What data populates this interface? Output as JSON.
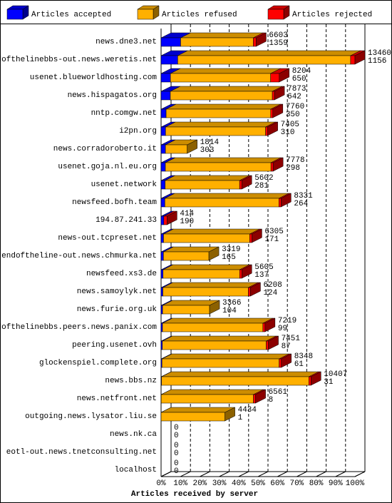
{
  "chart_data": {
    "type": "bar3d",
    "orientation": "horizontal",
    "stacked": true,
    "x_label": "Articles received by server",
    "legend": "top",
    "categories": [
      "news.dne3.net",
      "endofthelinebbs-out.news.weretis.net",
      "usenet.blueworldhosting.com",
      "news.hispagatos.org",
      "nntp.comgw.net",
      "i2pn.org",
      "news.corradoroberto.it",
      "usenet.goja.nl.eu.org",
      "usenet.network",
      "newsfeed.bofh.team",
      "194.87.241.33",
      "news-out.tcpreset.net",
      "endoftheline-out.news.chmurka.net",
      "newsfeed.xs3.de",
      "news.samoylyk.net",
      "news.furie.org.uk",
      "endofthelinebbs.peers.news.panix.com",
      "peering.usenet.ovh",
      "glockenspiel.complete.org",
      "news.bbs.nz",
      "news.netfront.net",
      "outgoing.news.lysator.liu.se",
      "news.nk.ca",
      "eotl-out.news.tnetconsulting.net",
      "localhost"
    ],
    "totals": [
      6603,
      13460,
      8204,
      7873,
      7760,
      7405,
      1814,
      7778,
      5602,
      8331,
      414,
      6305,
      3319,
      5605,
      6208,
      3366,
      7219,
      7451,
      8348,
      10407,
      6561,
      4434,
      0,
      0,
      0
    ],
    "series": [
      {
        "name": "Articles accepted",
        "color": "#0000ff",
        "values": [
          1359,
          1156,
          650,
          642,
          350,
          310,
          303,
          298,
          281,
          264,
          190,
          171,
          165,
          137,
          124,
          104,
          99,
          87,
          61,
          31,
          8,
          1,
          0,
          0,
          0
        ]
      },
      {
        "name": "Articles refused",
        "color": "#ffb000",
        "values": [
          5044,
          12004,
          6954,
          7081,
          7260,
          6945,
          1511,
          7330,
          5171,
          7917,
          0,
          5984,
          3154,
          5318,
          5934,
          3262,
          6970,
          7214,
          8137,
          10226,
          6403,
          4433,
          0,
          0,
          0
        ]
      },
      {
        "name": "Articles rejected",
        "color": "#ff0000",
        "values": [
          200,
          300,
          600,
          150,
          150,
          150,
          0,
          150,
          150,
          150,
          224,
          150,
          0,
          150,
          150,
          0,
          150,
          150,
          150,
          150,
          150,
          0,
          0,
          0,
          0
        ]
      }
    ],
    "xlim": [
      0,
      13460
    ],
    "xticks": [
      {
        "value": 0,
        "label": "0%"
      },
      {
        "value": 1346,
        "label": "10%"
      },
      {
        "value": 2692,
        "label": "20%"
      },
      {
        "value": 4038,
        "label": "30%"
      },
      {
        "value": 5384,
        "label": "40%"
      },
      {
        "value": 6730,
        "label": "50%"
      },
      {
        "value": 8076,
        "label": "60%"
      },
      {
        "value": 9422,
        "label": "70%"
      },
      {
        "value": 10768,
        "label": "80%"
      },
      {
        "value": 12114,
        "label": "90%"
      },
      {
        "value": 13460,
        "label": "100%"
      }
    ],
    "grid": true
  }
}
